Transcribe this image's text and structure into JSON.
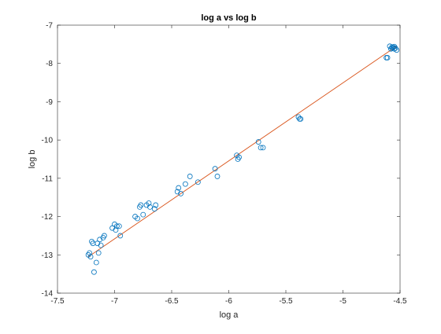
{
  "chart_data": {
    "type": "scatter",
    "title": "log a vs log b",
    "xlabel": "log a",
    "ylabel": "log b",
    "xlim": [
      -7.5,
      -4.5
    ],
    "ylim": [
      -14,
      -7
    ],
    "xticks": [
      -7.5,
      -7,
      -6.5,
      -6,
      -5.5,
      -5,
      -4.5
    ],
    "xtick_labels": [
      "-7.5",
      "-7",
      "-6.5",
      "-6",
      "-5.5",
      "-5",
      "-4.5"
    ],
    "yticks": [
      -14,
      -13,
      -12,
      -11,
      -10,
      -9,
      -8,
      -7
    ],
    "ytick_labels": [
      "-14",
      "-13",
      "-12",
      "-11",
      "-10",
      "-9",
      "-8",
      "-7"
    ],
    "grid": false,
    "box": true,
    "series": [
      {
        "type": "scatter",
        "marker": "circle-open",
        "color": "#0072bd",
        "points": [
          [
            -7.23,
            -13.0
          ],
          [
            -7.22,
            -12.95
          ],
          [
            -7.21,
            -13.05
          ],
          [
            -7.2,
            -12.65
          ],
          [
            -7.19,
            -12.7
          ],
          [
            -7.18,
            -13.45
          ],
          [
            -7.16,
            -13.2
          ],
          [
            -7.15,
            -12.7
          ],
          [
            -7.14,
            -12.95
          ],
          [
            -7.13,
            -12.6
          ],
          [
            -7.12,
            -12.75
          ],
          [
            -7.1,
            -12.55
          ],
          [
            -7.09,
            -12.5
          ],
          [
            -7.02,
            -12.3
          ],
          [
            -7.0,
            -12.2
          ],
          [
            -6.99,
            -12.35
          ],
          [
            -6.98,
            -12.25
          ],
          [
            -6.96,
            -12.25
          ],
          [
            -6.95,
            -12.5
          ],
          [
            -6.82,
            -12.0
          ],
          [
            -6.8,
            -12.05
          ],
          [
            -6.78,
            -11.75
          ],
          [
            -6.77,
            -11.7
          ],
          [
            -6.75,
            -11.95
          ],
          [
            -6.72,
            -11.7
          ],
          [
            -6.7,
            -11.65
          ],
          [
            -6.69,
            -11.75
          ],
          [
            -6.65,
            -11.8
          ],
          [
            -6.64,
            -11.7
          ],
          [
            -6.45,
            -11.35
          ],
          [
            -6.44,
            -11.25
          ],
          [
            -6.42,
            -11.4
          ],
          [
            -6.38,
            -11.15
          ],
          [
            -6.34,
            -10.95
          ],
          [
            -6.27,
            -11.1
          ],
          [
            -6.12,
            -10.75
          ],
          [
            -6.1,
            -10.95
          ],
          [
            -5.93,
            -10.4
          ],
          [
            -5.92,
            -10.5
          ],
          [
            -5.91,
            -10.45
          ],
          [
            -5.74,
            -10.05
          ],
          [
            -5.72,
            -10.2
          ],
          [
            -5.7,
            -10.2
          ],
          [
            -5.39,
            -9.4
          ],
          [
            -5.38,
            -9.45
          ],
          [
            -5.37,
            -9.45
          ],
          [
            -4.62,
            -7.85
          ],
          [
            -4.61,
            -7.85
          ],
          [
            -4.59,
            -7.55
          ],
          [
            -4.58,
            -7.62
          ],
          [
            -4.57,
            -7.6
          ],
          [
            -4.56,
            -7.58
          ],
          [
            -4.55,
            -7.56
          ],
          [
            -4.54,
            -7.6
          ],
          [
            -4.53,
            -7.65
          ],
          [
            -4.55,
            -7.62
          ],
          [
            -4.57,
            -7.57
          ]
        ]
      },
      {
        "type": "line",
        "color": "#d95319",
        "points": [
          [
            -7.23,
            -13.05
          ],
          [
            -4.53,
            -7.55
          ]
        ]
      }
    ]
  }
}
